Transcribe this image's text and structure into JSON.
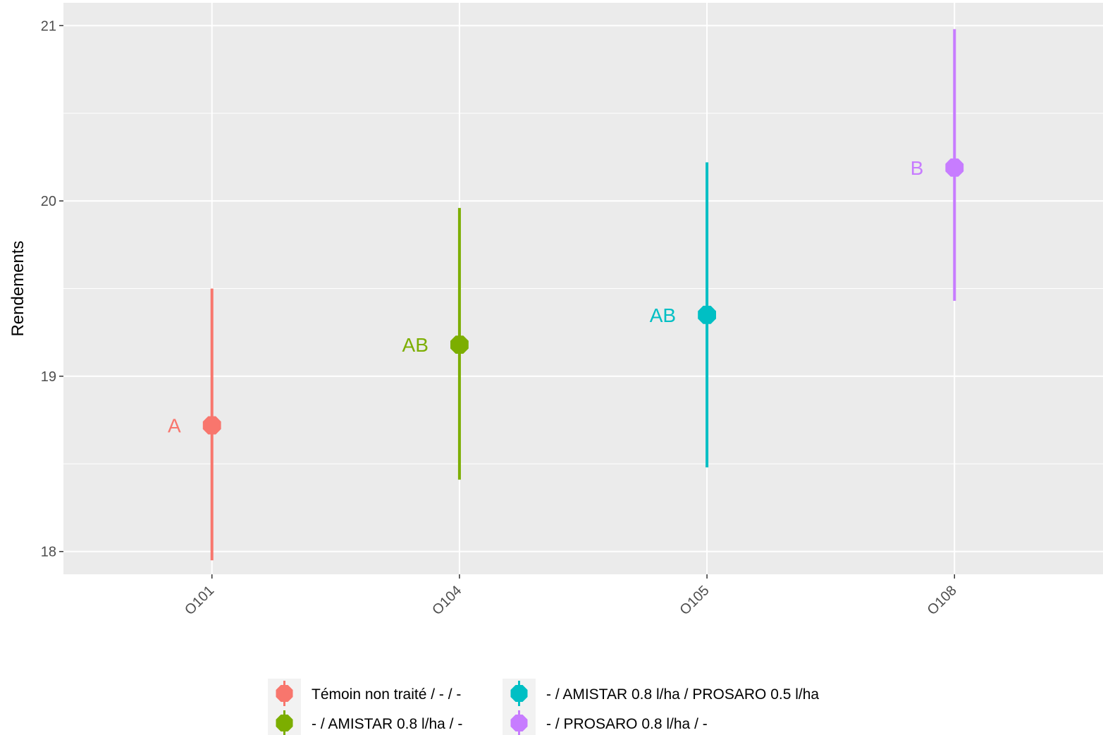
{
  "chart_data": {
    "type": "scatter",
    "ylabel": "Rendements",
    "xlabel": "",
    "ylim": [
      17.87,
      21.13
    ],
    "yticks": [
      18,
      19,
      20,
      21
    ],
    "categories": [
      "O101",
      "O104",
      "O105",
      "O108"
    ],
    "series": [
      {
        "name": "Témoin non traité / - / -",
        "category": "O101",
        "y": 18.72,
        "ymin": 17.95,
        "ymax": 19.5,
        "group_label": "A",
        "color": "#F8766D"
      },
      {
        "name": "- / AMISTAR 0.8 l/ha / -",
        "category": "O104",
        "y": 19.18,
        "ymin": 18.41,
        "ymax": 19.96,
        "group_label": "AB",
        "color": "#7CAE00"
      },
      {
        "name": "- / AMISTAR 0.8 l/ha / PROSARO 0.5 l/ha",
        "category": "O105",
        "y": 19.35,
        "ymin": 18.48,
        "ymax": 20.22,
        "group_label": "AB",
        "color": "#00BFC4"
      },
      {
        "name": "- / PROSARO 0.8 l/ha / -",
        "category": "O108",
        "y": 20.19,
        "ymin": 19.43,
        "ymax": 20.98,
        "group_label": "B",
        "color": "#C77CFF"
      }
    ],
    "legend": {
      "placement": "bottom",
      "columns": [
        [
          "Témoin non traité / - / -",
          "- / AMISTAR 0.8 l/ha / -"
        ],
        [
          "- / AMISTAR 0.8 l/ha / PROSARO 0.5 l/ha",
          "- / PROSARO 0.8 l/ha / -"
        ]
      ]
    },
    "grid": true,
    "panel_background": "#EBEBEB",
    "grid_color": "#FFFFFF"
  }
}
